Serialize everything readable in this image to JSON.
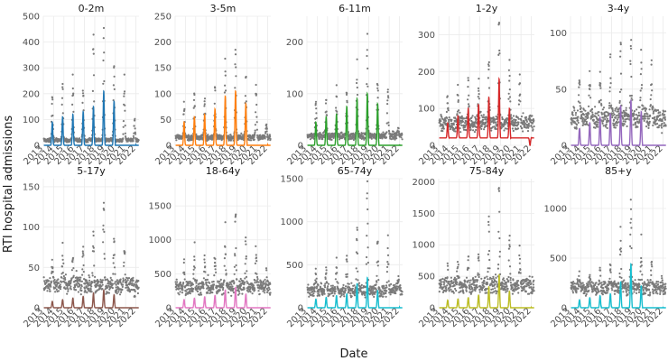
{
  "chart_data": {
    "type": "line",
    "ylabel": "RTI hospital admissions",
    "xlabel": "Date",
    "x_ticks": [
      "2013",
      "2014",
      "2015",
      "2016",
      "2017",
      "2018",
      "2019",
      "2020",
      "2021",
      "2022"
    ],
    "x_range": [
      2013,
      2022.3
    ],
    "grid": true,
    "panels": [
      {
        "title": "0-2m",
        "color": "#1f77b4",
        "ylim": [
          0,
          500
        ],
        "yticks": [
          0,
          100,
          200,
          300,
          400,
          500
        ],
        "obs_base": 20,
        "obs_peaks": [
          190,
          210,
          250,
          220,
          380,
          420,
          310,
          240,
          100,
          140
        ],
        "fit_base": 0,
        "fit_peaks": [
          90,
          110,
          120,
          130,
          150,
          210,
          170,
          150,
          0,
          60
        ],
        "tail": "peak"
      },
      {
        "title": "3-5m",
        "color": "#ff7f0e",
        "ylim": [
          0,
          250
        ],
        "yticks": [
          0,
          50,
          100,
          150,
          200,
          250
        ],
        "obs_base": 15,
        "obs_peaks": [
          85,
          95,
          100,
          100,
          155,
          185,
          140,
          110,
          40,
          60
        ],
        "fit_base": 0,
        "fit_peaks": [
          45,
          55,
          60,
          70,
          95,
          105,
          80,
          70,
          0,
          30
        ],
        "tail": "peak"
      },
      {
        "title": "6-11m",
        "color": "#2ca02c",
        "ylim": [
          0,
          250
        ],
        "yticks": [
          0,
          100,
          200
        ],
        "obs_base": 18,
        "obs_peaks": [
          80,
          85,
          100,
          100,
          150,
          190,
          130,
          110,
          30,
          75
        ],
        "fit_base": 0,
        "fit_peaks": [
          45,
          55,
          60,
          75,
          90,
          100,
          80,
          70,
          0,
          50
        ],
        "tail": "peak"
      },
      {
        "title": "1-2y",
        "color": "#d62728",
        "ylim": [
          0,
          350
        ],
        "yticks": [
          0,
          100,
          200,
          300
        ],
        "obs_base": 60,
        "obs_peaks": [
          130,
          140,
          155,
          160,
          230,
          330,
          210,
          175,
          70,
          160
        ],
        "fit_base": 20,
        "fit_peaks": [
          60,
          80,
          100,
          110,
          130,
          180,
          100,
          80,
          0,
          90
        ],
        "tail": "peak"
      },
      {
        "title": "3-4y",
        "color": "#9467bd",
        "ylim": [
          0,
          115
        ],
        "yticks": [
          0,
          50,
          100
        ],
        "obs_base": 25,
        "obs_peaks": [
          55,
          58,
          62,
          68,
          80,
          95,
          70,
          62,
          20,
          60
        ],
        "fit_base": 0,
        "fit_peaks": [
          15,
          20,
          25,
          28,
          35,
          40,
          30,
          25,
          0,
          0
        ],
        "tail": "flat"
      },
      {
        "title": "5-17y",
        "color": "#8c564b",
        "ylim": [
          0,
          160
        ],
        "yticks": [
          0,
          50,
          100,
          150
        ],
        "obs_base": 28,
        "obs_peaks": [
          55,
          58,
          62,
          68,
          90,
          125,
          80,
          70,
          20,
          55
        ],
        "fit_base": 0,
        "fit_peaks": [
          8,
          10,
          12,
          14,
          18,
          22,
          16,
          12,
          0,
          0
        ],
        "tail": "flat"
      },
      {
        "title": "18-64y",
        "color": "#e377c2",
        "ylim": [
          0,
          1900
        ],
        "yticks": [
          0,
          500,
          1000,
          1500
        ],
        "obs_base": 300,
        "obs_peaks": [
          600,
          700,
          750,
          800,
          1050,
          1450,
          950,
          850,
          450,
          1100
        ],
        "fit_base": 0,
        "fit_peaks": [
          120,
          140,
          160,
          180,
          260,
          300,
          200,
          160,
          0,
          0
        ],
        "tail": "flat"
      },
      {
        "title": "65-74y",
        "color": "#17becf",
        "ylim": [
          0,
          1500
        ],
        "yticks": [
          0,
          500,
          1000,
          1500
        ],
        "obs_base": 200,
        "obs_peaks": [
          400,
          450,
          500,
          550,
          900,
          1380,
          800,
          650,
          300,
          1000
        ],
        "fit_base": 0,
        "fit_peaks": [
          100,
          120,
          140,
          160,
          280,
          350,
          200,
          160,
          0,
          180
        ],
        "tail": "peak"
      },
      {
        "title": "75-84y",
        "color": "#bcbd22",
        "ylim": [
          0,
          2050
        ],
        "yticks": [
          0,
          500,
          1000,
          1500,
          2000
        ],
        "obs_base": 350,
        "obs_peaks": [
          600,
          650,
          750,
          800,
          1300,
          1900,
          1100,
          900,
          400,
          800
        ],
        "fit_base": 0,
        "fit_peaks": [
          120,
          140,
          160,
          200,
          330,
          520,
          260,
          220,
          0,
          150
        ],
        "tail": "peak"
      },
      {
        "title": "85+y",
        "color": "#17becf",
        "ylim": [
          0,
          1300
        ],
        "yticks": [
          0,
          500,
          1000
        ],
        "obs_base": 200,
        "obs_peaks": [
          300,
          330,
          380,
          420,
          700,
          1150,
          600,
          480,
          250,
          450
        ],
        "fit_base": 0,
        "fit_peaks": [
          80,
          100,
          120,
          140,
          260,
          440,
          220,
          180,
          0,
          120
        ],
        "tail": "peak"
      }
    ]
  }
}
